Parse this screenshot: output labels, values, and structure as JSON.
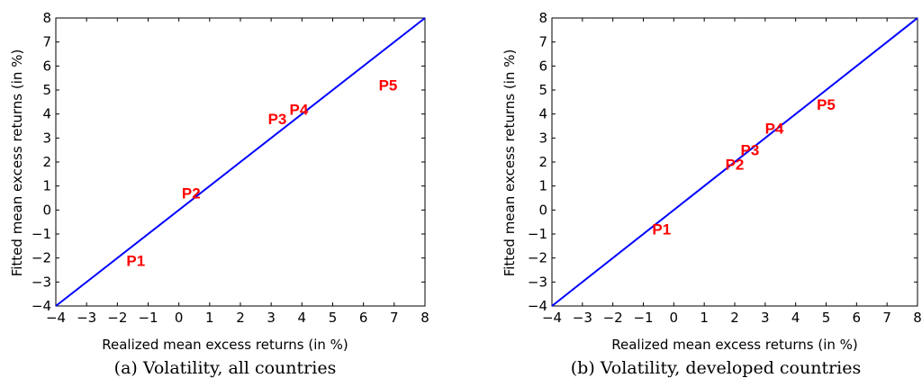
{
  "chart_data": [
    {
      "type": "scatter",
      "caption": "(a) Volatility, all countries",
      "xlabel": "Realized mean excess returns (in %)",
      "ylabel": "Fitted mean excess returns (in %)",
      "xlim": [
        -4,
        8
      ],
      "ylim": [
        -4,
        8
      ],
      "xticks": [
        -4,
        -3,
        -2,
        -1,
        0,
        1,
        2,
        3,
        4,
        5,
        6,
        7,
        8
      ],
      "yticks": [
        -4,
        -3,
        -2,
        -1,
        0,
        1,
        2,
        3,
        4,
        5,
        6,
        7,
        8
      ],
      "grid": false,
      "reference_line": {
        "from": [
          -4,
          -4
        ],
        "to": [
          8,
          8
        ],
        "color": "#0000ff"
      },
      "point_color": "#ff0000",
      "points": [
        {
          "label": "P1",
          "x": -1.4,
          "y": -2.1
        },
        {
          "label": "P2",
          "x": 0.4,
          "y": 0.7
        },
        {
          "label": "P3",
          "x": 3.2,
          "y": 3.8
        },
        {
          "label": "P4",
          "x": 3.9,
          "y": 4.2
        },
        {
          "label": "P5",
          "x": 6.8,
          "y": 5.2
        }
      ]
    },
    {
      "type": "scatter",
      "caption": "(b) Volatility, developed countries",
      "xlabel": "Realized mean excess returns (in %)",
      "ylabel": "Fitted mean excess returns (in %)",
      "xlim": [
        -4,
        8
      ],
      "ylim": [
        -4,
        8
      ],
      "xticks": [
        -4,
        -3,
        -2,
        -1,
        0,
        1,
        2,
        3,
        4,
        5,
        6,
        7,
        8
      ],
      "yticks": [
        -4,
        -3,
        -2,
        -1,
        0,
        1,
        2,
        3,
        4,
        5,
        6,
        7,
        8
      ],
      "grid": false,
      "reference_line": {
        "from": [
          -4,
          -4
        ],
        "to": [
          8,
          8
        ],
        "color": "#0000ff"
      },
      "point_color": "#ff0000",
      "points": [
        {
          "label": "P1",
          "x": -0.4,
          "y": -0.8
        },
        {
          "label": "P2",
          "x": 2.0,
          "y": 1.9
        },
        {
          "label": "P3",
          "x": 2.5,
          "y": 2.5
        },
        {
          "label": "P4",
          "x": 3.3,
          "y": 3.4
        },
        {
          "label": "P5",
          "x": 5.0,
          "y": 4.4
        }
      ]
    }
  ]
}
